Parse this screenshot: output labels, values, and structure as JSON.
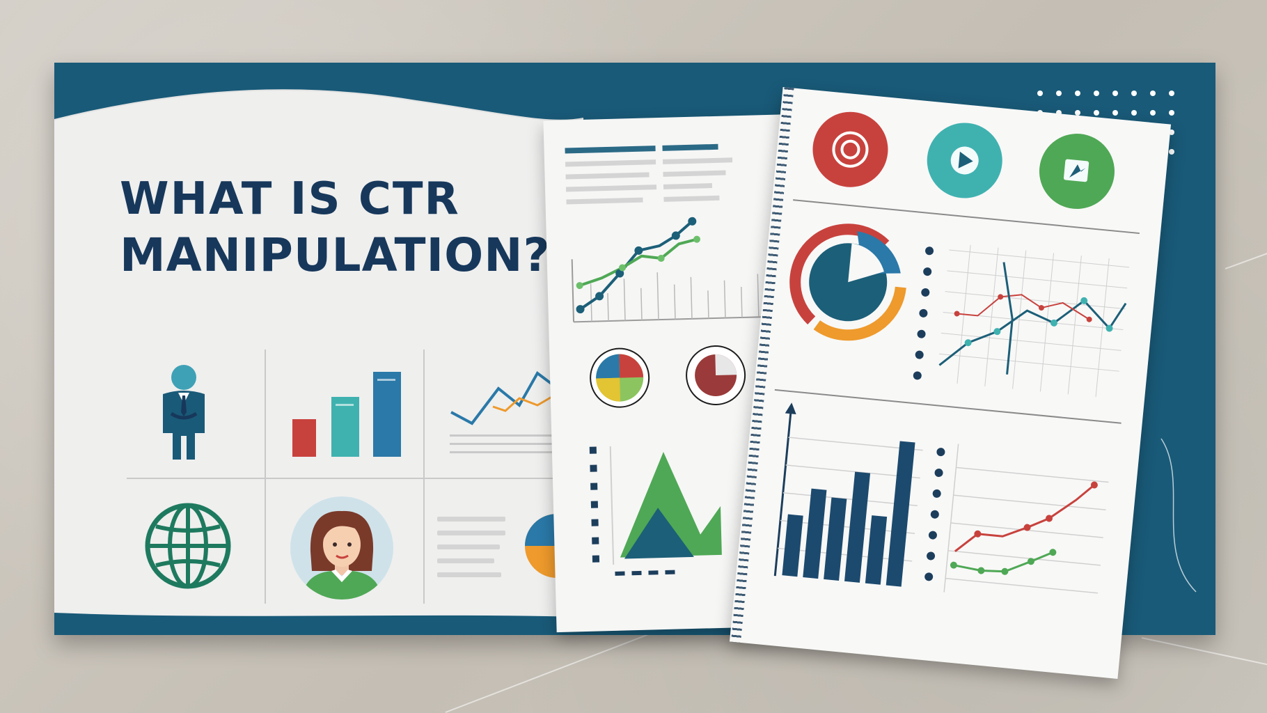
{
  "title": {
    "line1": "WHAT IS CTR",
    "line2": "MANIPULATION?"
  },
  "colors": {
    "navy": "#17385b",
    "teal_dark": "#195a78",
    "teal": "#3fb2b0",
    "blue": "#2a79a8",
    "red": "#c8423d",
    "green": "#4fa855",
    "orange": "#ee9a2c",
    "light_green": "#8cc55f"
  },
  "icons": [
    "businessman-icon",
    "bar-chart-icon",
    "line-chart-icon",
    "globe-icon",
    "woman-avatar-icon",
    "pie-chart-icon",
    "target-icon",
    "play-icon",
    "cursor-click-icon"
  ]
}
